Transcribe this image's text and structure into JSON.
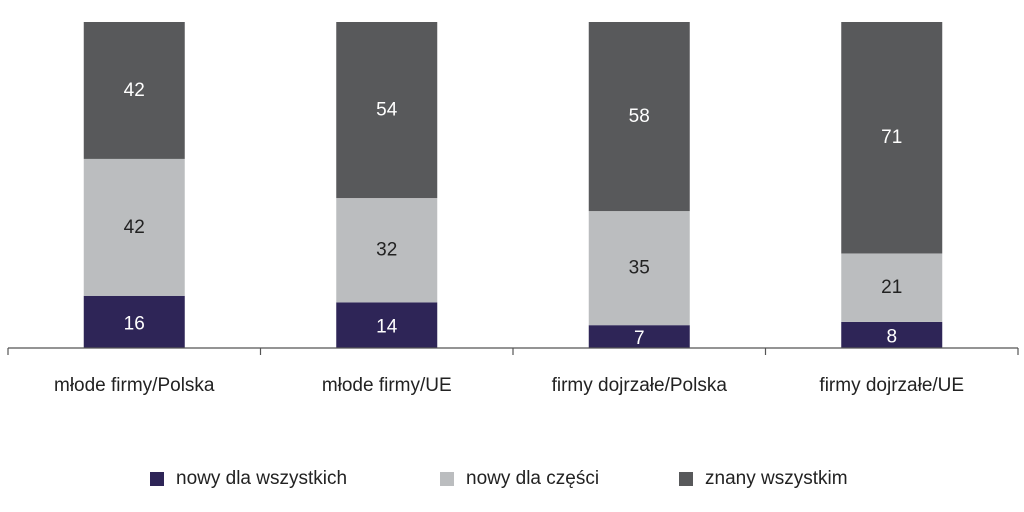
{
  "chart_data": {
    "type": "bar",
    "stacked": true,
    "percent_stacked": true,
    "title": "",
    "xlabel": "",
    "ylabel": "",
    "ylim": [
      0,
      100
    ],
    "grid": false,
    "legend_position": "bottom",
    "categories": [
      "młode firmy/Polska",
      "młode firmy/UE",
      "firmy dojrzałe/Polska",
      "firmy dojrzałe/UE"
    ],
    "series": [
      {
        "name": "nowy dla wszystkich",
        "color": "#2e2557",
        "label_color": "#ffffff",
        "values": [
          16,
          14,
          7,
          8
        ]
      },
      {
        "name": "nowy dla części",
        "color": "#bbbdbf",
        "label_color": "#222222",
        "values": [
          42,
          32,
          35,
          21
        ]
      },
      {
        "name": "znany wszystkim",
        "color": "#58595b",
        "label_color": "#ffffff",
        "values": [
          42,
          54,
          58,
          71
        ]
      }
    ]
  },
  "legend": {
    "items": [
      {
        "label": "nowy dla wszystkich",
        "color": "#2e2557"
      },
      {
        "label": "nowy dla części",
        "color": "#bbbdbf"
      },
      {
        "label": "znany wszystkim",
        "color": "#58595b"
      }
    ]
  }
}
